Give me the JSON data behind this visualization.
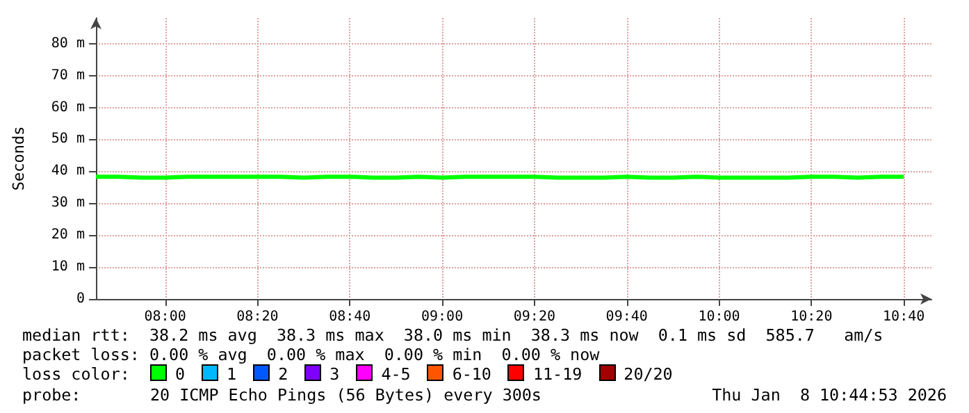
{
  "chart_data": {
    "type": "step",
    "ylabel": "Seconds",
    "color": "#00ff00",
    "marker": "none",
    "line_style": "solid",
    "grid": true,
    "x": [
      7.75,
      7.8333,
      7.9167,
      8.0,
      8.0833,
      8.1667,
      8.25,
      8.3333,
      8.4167,
      8.5,
      8.5833,
      8.6667,
      8.75,
      8.8333,
      8.9167,
      9.0,
      9.0833,
      9.1667,
      9.25,
      9.3333,
      9.4167,
      9.5,
      9.5833,
      9.6667,
      9.75,
      9.8333,
      9.9167,
      10.0,
      10.0833,
      10.1667,
      10.25,
      10.3333,
      10.4167,
      10.5,
      10.5833,
      10.6667
    ],
    "values": [
      38.3,
      38.0,
      38.0,
      38.3,
      38.3,
      38.3,
      38.3,
      38.3,
      38.0,
      38.3,
      38.3,
      38.0,
      38.0,
      38.3,
      38.0,
      38.3,
      38.3,
      38.3,
      38.3,
      38.0,
      38.0,
      38.0,
      38.3,
      38.0,
      38.0,
      38.3,
      38.0,
      38.0,
      38.0,
      38.0,
      38.3,
      38.3,
      38.0,
      38.3,
      38.3,
      38.3
    ],
    "xlim": [
      7.75,
      10.7667
    ],
    "xticks": [
      {
        "value": 8,
        "label": "08:00"
      },
      {
        "value": 8.3333,
        "label": "08:20"
      },
      {
        "value": 8.6667,
        "label": "08:40"
      },
      {
        "value": 9,
        "label": "09:00"
      },
      {
        "value": 9.3333,
        "label": "09:20"
      },
      {
        "value": 9.6667,
        "label": "09:40"
      },
      {
        "value": 10,
        "label": "10:00"
      },
      {
        "value": 10.3333,
        "label": "10:20"
      },
      {
        "value": 10.6667,
        "label": "10:40"
      }
    ],
    "ylim": [
      0,
      88
    ],
    "yticks": [
      0,
      {
        "value": 10,
        "label": "10 m"
      },
      {
        "value": 20,
        "label": "20 m"
      },
      {
        "value": 30,
        "label": "30 m"
      },
      {
        "value": 40,
        "label": "40 m"
      },
      {
        "value": 50,
        "label": "50 m"
      },
      {
        "value": 60,
        "label": "60 m"
      },
      {
        "value": 70,
        "label": "70 m"
      },
      {
        "value": 80,
        "label": "80 m"
      }
    ],
    "annotations": [
      "median rtt:  38.2 ms avg  38.3 ms max  38.0 ms min  38.3 ms now  0.1 ms sd  585.7   am/s",
      "packet loss: 0.00 % avg  0.00 % max  0.00 % min  0.00 % now",
      "loss color:",
      "0",
      "1",
      "2",
      "3",
      "4-5",
      "6-10",
      "11-19",
      "20/20",
      "probe:",
      "20 ICMP Echo Pings (56 Bytes) every 300s",
      "Thu Jan  8 10:44:53 2026"
    ]
  }
}
